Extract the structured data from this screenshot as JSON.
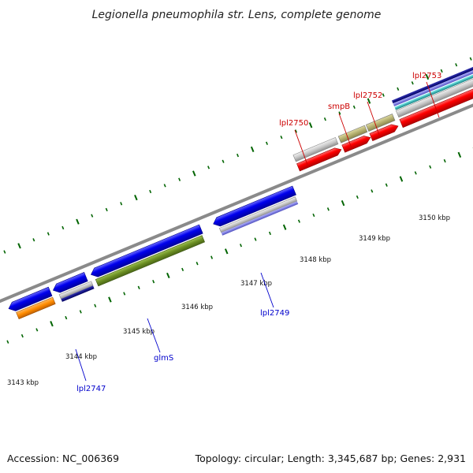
{
  "title": "Legionella pneumophila str. Lens, complete genome",
  "footer": {
    "accession": "Accession: NC_006369",
    "summary": "Topology: circular; Length: 3,345,687 bp; Genes: 2,931"
  },
  "tick_labels": [
    "3143 kbp",
    "3144 kbp",
    "3145 kbp",
    "3146 kbp",
    "3147 kbp",
    "3148 kbp",
    "3149 kbp",
    "3150 kbp"
  ],
  "gene_labels_forward": [
    "lpl2750",
    "smpB",
    "lpl2752",
    "lpl2753"
  ],
  "gene_labels_reverse": [
    "lpl2747",
    "glmS",
    "lpl2749"
  ],
  "colors": {
    "forward_cds": "#ff0000",
    "reverse_cds": "#0000ee",
    "gray_feature": "#c0c0c0",
    "olive_feature": "#b5b070",
    "green_feature": "#6b8e23",
    "orange_feature": "#ff8c00",
    "navy_feature": "#000080",
    "lavender_feature": "#8080e0",
    "cyan_feature": "#20c0c0",
    "backbone": "#808080",
    "tick": "#006400",
    "label_forward": "#cc0000",
    "label_reverse": "#0000cc"
  }
}
